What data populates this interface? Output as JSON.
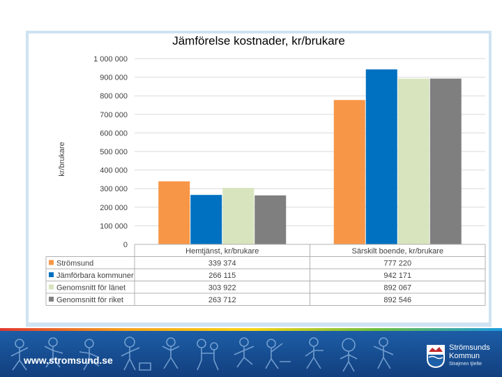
{
  "chart_data": {
    "type": "bar",
    "title": "Jämförelse kostnader, kr/brukare",
    "ylabel": "kr/brukare",
    "xlabel": "",
    "ylim": [
      0,
      1000000
    ],
    "y_ticks": [
      0,
      100000,
      200000,
      300000,
      400000,
      500000,
      600000,
      700000,
      800000,
      900000,
      1000000
    ],
    "y_tick_labels": [
      "0",
      "100 000",
      "200 000",
      "300 000",
      "400 000",
      "500 000",
      "600 000",
      "700 000",
      "800 000",
      "900 000",
      "1 000 000"
    ],
    "categories": [
      "Hemtjänst, kr/brukare",
      "Särskilt boende, kr/brukare"
    ],
    "series": [
      {
        "name": "Strömsund",
        "color": "#f79646",
        "values": [
          339374,
          777220
        ],
        "value_labels": [
          "339 374",
          "777 220"
        ]
      },
      {
        "name": "Jämförbara kommuner",
        "color": "#0070c0",
        "values": [
          266115,
          942171
        ],
        "value_labels": [
          "266 115",
          "942 171"
        ]
      },
      {
        "name": "Genomsnitt för länet",
        "color": "#d7e4bd",
        "values": [
          303922,
          892067
        ],
        "value_labels": [
          "303 922",
          "892 067"
        ]
      },
      {
        "name": "Genomsnitt för riket",
        "color": "#7f7f7f",
        "values": [
          263712,
          892546
        ],
        "value_labels": [
          "263 712",
          "892 546"
        ]
      }
    ],
    "grid": true,
    "legend": "data-table-below"
  },
  "footer": {
    "website": "www.stromsund.se",
    "logo_line1": "Strömsunds",
    "logo_line2": "Kommun",
    "logo_line3": "Strøjmen tjïelte"
  },
  "colors": {
    "footer_blue": "#1d5fa8",
    "frame_blue": "#cfe3f2",
    "grid": "#d9d9d9"
  }
}
